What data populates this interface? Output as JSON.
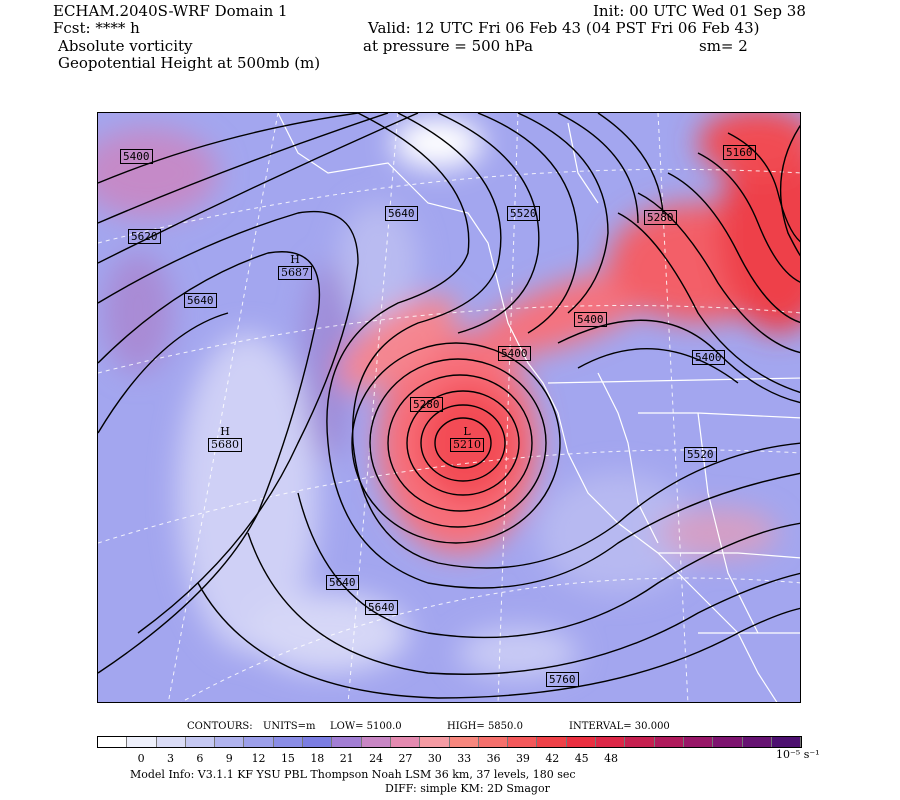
{
  "header": {
    "model_title": "ECHAM.2040S-WRF Domain 1",
    "forecast": "Fcst: **** h",
    "field1": "Absolute vorticity",
    "field2": "Geopotential Height at 500mb (m)",
    "init": "Init: 00 UTC Wed 01 Sep 38",
    "valid": "Valid: 12 UTC Fri 06 Feb 43 (04 PST Fri 06 Feb 43)",
    "pressure": "at pressure =  500 hPa",
    "smoothing": "sm= 2"
  },
  "contour_labels": [
    "5400",
    "5620",
    "5640",
    "5640",
    "5520",
    "5160",
    "5280",
    "5400",
    "5400",
    "5400",
    "5280",
    "5520",
    "5640",
    "5640",
    "5760"
  ],
  "highs_lows": [
    {
      "letter": "H",
      "value": "5687"
    },
    {
      "letter": "H",
      "value": "5680"
    },
    {
      "letter": "L",
      "value": "5210"
    }
  ],
  "contours_info": {
    "contours": "CONTOURS:",
    "units": "UNITS=m",
    "low": "LOW=   5100.0",
    "high": "HIGH=   5850.0",
    "interval": "INTERVAL=     30.000"
  },
  "colorbar": {
    "ticks": [
      "0",
      "3",
      "6",
      "9",
      "12",
      "15",
      "18",
      "21",
      "24",
      "27",
      "30",
      "33",
      "36",
      "39",
      "42",
      "45",
      "48"
    ],
    "unit": "10⁻⁵ s⁻¹",
    "colors": [
      "#ffffff",
      "#eef0fb",
      "#dadcf6",
      "#c5c8f2",
      "#b0b3ee",
      "#9c9fea",
      "#8a8de6",
      "#7b7de2",
      "#a27ed4",
      "#c886c4",
      "#e48ab0",
      "#f59ba3",
      "#f7877e",
      "#f5706c",
      "#f3585a",
      "#ef4148",
      "#ea2f40",
      "#dc2747",
      "#c62050",
      "#b01a5c",
      "#981768",
      "#7e1470",
      "#661372",
      "#4d1070"
    ]
  },
  "footer": {
    "model_info": "Model Info: V3.1.1    KF      YSU PBL   Thompson     Noah LSM  36 km,    37 levels,  180 sec",
    "diff": "DIFF: simple KM: 2D Smagor"
  }
}
